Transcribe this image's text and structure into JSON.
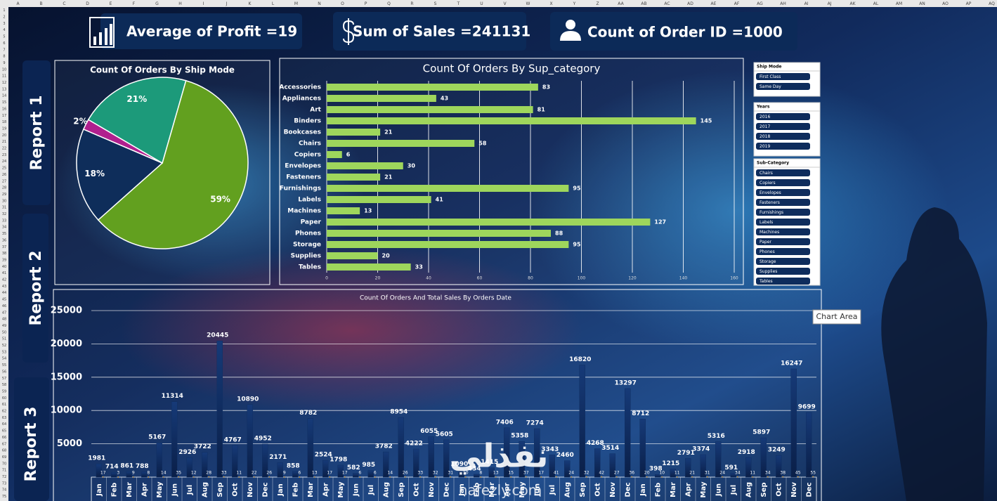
{
  "sheet": {
    "columns": [
      "A",
      "B",
      "C",
      "D",
      "E",
      "F",
      "G",
      "H",
      "I",
      "J",
      "K",
      "L",
      "M",
      "N",
      "O",
      "P",
      "Q",
      "R",
      "S",
      "T",
      "U",
      "V",
      "W",
      "X",
      "Y",
      "Z",
      "AA",
      "AB",
      "AC",
      "AD",
      "AE",
      "AF",
      "AG",
      "AH",
      "AI",
      "AJ",
      "AK",
      "AL",
      "AM",
      "AN",
      "AO",
      "AP",
      "AQ"
    ],
    "rows": [
      1,
      2,
      3,
      4,
      5,
      6,
      7,
      8,
      9,
      10,
      11,
      12,
      13,
      14,
      15,
      16,
      17,
      18,
      19,
      20,
      21,
      22,
      23,
      24,
      25,
      26,
      27,
      28,
      29,
      30,
      31,
      32,
      33,
      34,
      35,
      36,
      37,
      38,
      39,
      40,
      41,
      42,
      43,
      44,
      45,
      46,
      47,
      48,
      49,
      50,
      51,
      52,
      53,
      54,
      55,
      56,
      57,
      58,
      59,
      60,
      61,
      62,
      63,
      64,
      65,
      66,
      67,
      68,
      69,
      70,
      71,
      72,
      73,
      74,
      75
    ]
  },
  "kpis": [
    "Average of Profit =19",
    "Sum of Sales =241131",
    "Count of Order ID =1000"
  ],
  "report_tabs": [
    "Report 1",
    "Report 2",
    "Report 3"
  ],
  "slicers": [
    {
      "title": "Ship Mode",
      "items": [
        "First Class",
        "Same Day"
      ]
    },
    {
      "title": "Years",
      "items": [
        "2016",
        "2017",
        "2018",
        "2019"
      ]
    },
    {
      "title": "Sub-Category",
      "items": [
        "Chairs",
        "Copiers",
        "Envelopes",
        "Fasteners",
        "Furnishings",
        "Labels",
        "Machines",
        "Paper",
        "Phones",
        "Storage",
        "Supplies",
        "Tables"
      ]
    }
  ],
  "tooltip": "Chart Area",
  "watermark": [
    "نفذلي",
    "nafezly.com"
  ],
  "chart_data": [
    {
      "type": "pie",
      "title": "Count Of Orders By Ship Mode",
      "values": [
        59,
        18,
        2,
        21
      ],
      "value_labels": [
        "59%",
        "18%",
        "2%",
        "21%"
      ],
      "colors": [
        "#62a01f",
        "#0e2d5a",
        "#b0208e",
        "#1c9a7a"
      ]
    },
    {
      "type": "bar",
      "title": "Count Of Orders By Sup_category",
      "categories": [
        "Accessories",
        "Appliances",
        "Art",
        "Binders",
        "Bookcases",
        "Chairs",
        "Copiers",
        "Envelopes",
        "Fasteners",
        "Furnishings",
        "Labels",
        "Machines",
        "Paper",
        "Phones",
        "Storage",
        "Supplies",
        "Tables"
      ],
      "values": [
        83,
        43,
        81,
        145,
        21,
        58,
        6,
        30,
        21,
        95,
        41,
        13,
        127,
        88,
        95,
        20,
        33
      ],
      "color": "#9ed65c",
      "xlim": [
        0,
        160
      ],
      "xticks": [
        0,
        20,
        40,
        60,
        80,
        100,
        120,
        140,
        160
      ],
      "grid": true
    },
    {
      "type": "combo",
      "title": "Count Of Orders And Total Sales By Orders Date",
      "categories": [
        "Jan",
        "Feb",
        "Mar",
        "Apr",
        "May",
        "Jun",
        "Jul",
        "Aug",
        "Sep",
        "Oct",
        "Nov",
        "Dec",
        "Jan",
        "Feb",
        "Mar",
        "Apr",
        "May",
        "Jun",
        "Jul",
        "Aug",
        "Sep",
        "Oct",
        "Nov",
        "Dec",
        "Jan",
        "Feb",
        "Mar",
        "Apr",
        "May",
        "Jun",
        "Jul",
        "Aug",
        "Sep",
        "Oct",
        "Nov",
        "Dec",
        "Jan",
        "Feb",
        "Mar",
        "Apr",
        "May",
        "Jun",
        "Jul",
        "Aug",
        "Sep",
        "Oct",
        "Nov",
        "Dec"
      ],
      "series": [
        {
          "color": "#0f2f63",
          "values": [
            1981,
            714,
            861,
            788,
            5167,
            11314,
            2926,
            3722,
            20445,
            4767,
            10890,
            4952,
            2171,
            858,
            8782,
            2524,
            1798,
            582,
            985,
            3782,
            8954,
            4222,
            6055,
            5605,
            1090,
            434,
            1415,
            7406,
            5358,
            7274,
            3343,
            2460,
            16820,
            4268,
            3514,
            13297,
            8712,
            398,
            1215,
            2791,
            3374,
            5316,
            591,
            2918,
            5897,
            3249,
            16247,
            9699
          ]
        },
        {
          "color": "#f5a623",
          "values": [
            17,
            3,
            9,
            8,
            14,
            35,
            12,
            28,
            33,
            11,
            22,
            26,
            9,
            6,
            13,
            17,
            17,
            6,
            6,
            14,
            26,
            33,
            32,
            31,
            10,
            8,
            13,
            15,
            37,
            17,
            41,
            24,
            32,
            42,
            27,
            36,
            20,
            10,
            11,
            21,
            31,
            24,
            34,
            11,
            34,
            38,
            45,
            55
          ]
        }
      ],
      "ylim": [
        0,
        25000
      ],
      "yticks": [
        5000,
        10000,
        15000,
        20000,
        25000
      ],
      "grid": true
    }
  ]
}
